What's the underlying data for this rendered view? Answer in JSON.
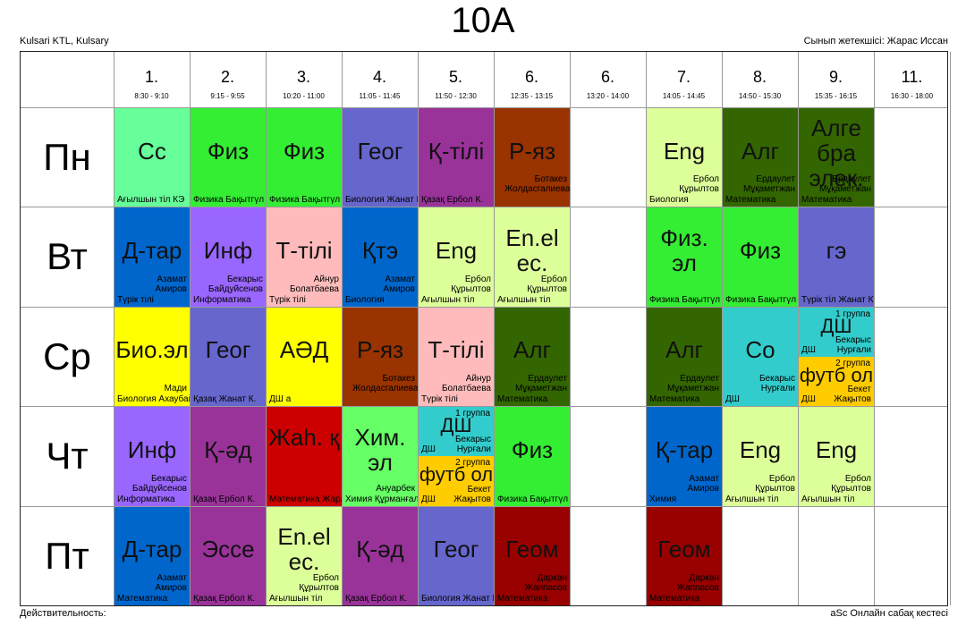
{
  "title": "10А",
  "school": "Kulsari KTL, Kulsary",
  "class_teacher": "Сынып жетекшісі: Жарас Иссан",
  "validity": "Действительность:",
  "footer": "aSc Онлайн сабақ кестесі",
  "periods": [
    {
      "num": "1.",
      "time": "8:30 - 9:10"
    },
    {
      "num": "2.",
      "time": "9:15 - 9:55"
    },
    {
      "num": "3.",
      "time": "10:20 - 11:00"
    },
    {
      "num": "4.",
      "time": "11:05 - 11:45"
    },
    {
      "num": "5.",
      "time": "11:50 - 12:30"
    },
    {
      "num": "6.",
      "time": "12:35 - 13:15"
    },
    {
      "num": "6.",
      "time": "13:20 - 14:00"
    },
    {
      "num": "7.",
      "time": "14:05 - 14:45"
    },
    {
      "num": "8.",
      "time": "14:50 - 15:30"
    },
    {
      "num": "9.",
      "time": "15:35 - 16:15"
    },
    {
      "num": "11.",
      "time": "16:30 - 18:00"
    }
  ],
  "days": [
    "Пн",
    "Вт",
    "Ср",
    "Чт",
    "Пт"
  ],
  "lessons": [
    {
      "day": 0,
      "col": 0,
      "subject": "Сс",
      "teacher": "",
      "room": "Ағылшын тіл КЭ",
      "color": "#66ff99"
    },
    {
      "day": 0,
      "col": 1,
      "subject": "Физ",
      "teacher": "",
      "room": "Физика Бақытгүл Н.",
      "color": "#33ee33"
    },
    {
      "day": 0,
      "col": 2,
      "subject": "Физ",
      "teacher": "",
      "room": "Физика Бақытгүл Н.",
      "color": "#33ee33"
    },
    {
      "day": 0,
      "col": 3,
      "subject": "Геог",
      "teacher": "",
      "room": "Биология Жанат К.",
      "color": "#6666cc"
    },
    {
      "day": 0,
      "col": 4,
      "subject": "Қ-тілі",
      "teacher": "",
      "room": "Қазақ Ербол К.",
      "color": "#993399"
    },
    {
      "day": 0,
      "col": 5,
      "subject": "Р-яз",
      "teacher": "Ботакез Жолдасгалиева",
      "room": "",
      "color": "#993300"
    },
    {
      "day": 0,
      "col": 7,
      "subject": "Eng",
      "teacher": "Ербол Құрылтов",
      "room": "Биология",
      "color": "#ddff99"
    },
    {
      "day": 0,
      "col": 8,
      "subject": "Алг",
      "teacher": "Ердаулет Мұқаметжан",
      "room": "Математика",
      "color": "#336600"
    },
    {
      "day": 0,
      "col": 9,
      "subject": "Алге бра элек.",
      "teacher": "Ердаулет Мұқаметжан",
      "room": "Математика",
      "color": "#336600"
    },
    {
      "day": 1,
      "col": 0,
      "subject": "Д-тар",
      "teacher": "Азамат Амиров",
      "room": "Түрік тілі",
      "color": "#0066cc"
    },
    {
      "day": 1,
      "col": 1,
      "subject": "Инф",
      "teacher": "Бекарыс Байдуйсенов",
      "room": "Информатика",
      "color": "#9966ff"
    },
    {
      "day": 1,
      "col": 2,
      "subject": "Т-тілі",
      "teacher": "Айнур Болатбаева",
      "room": "Түрік тілі",
      "color": "#ffbbbb"
    },
    {
      "day": 1,
      "col": 3,
      "subject": "Қтэ",
      "teacher": "Азамат Амиров",
      "room": "Биология",
      "color": "#0066cc"
    },
    {
      "day": 1,
      "col": 4,
      "subject": "Eng",
      "teacher": "Ербол Құрылтов",
      "room": "Ағылшын тіл",
      "color": "#ddff99"
    },
    {
      "day": 1,
      "col": 5,
      "subject": "En.el ес.",
      "teacher": "Ербол Құрылтов",
      "room": "Ағылшын тіл",
      "color": "#ddff99"
    },
    {
      "day": 1,
      "col": 7,
      "subject": "Физ. эл",
      "teacher": "",
      "room": "Физика Бақытгүл Н.",
      "color": "#33ee33"
    },
    {
      "day": 1,
      "col": 8,
      "subject": "Физ",
      "teacher": "",
      "room": "Физика Бақытгүл Н.",
      "color": "#33ee33"
    },
    {
      "day": 1,
      "col": 9,
      "subject": "гэ",
      "teacher": "",
      "room": "Түрік тіл Жанат К.",
      "color": "#6666cc"
    },
    {
      "day": 2,
      "col": 0,
      "subject": "Био.эл",
      "teacher": "Мади",
      "room": "Биология Ахаубай",
      "color": "#ffff00"
    },
    {
      "day": 2,
      "col": 1,
      "subject": "Геог",
      "teacher": "",
      "room": "Қазақ Жанат К.",
      "color": "#6666cc"
    },
    {
      "day": 2,
      "col": 2,
      "subject": "АӘД",
      "teacher": "",
      "room": "ДШ  а",
      "color": "#ffff00"
    },
    {
      "day": 2,
      "col": 3,
      "subject": "Р-яз",
      "teacher": "Ботакез Жолдасгалиева",
      "room": "",
      "color": "#993300"
    },
    {
      "day": 2,
      "col": 4,
      "subject": "Т-тілі",
      "teacher": "Айнур Болатбаева",
      "room": "Түрік тілі",
      "color": "#ffbbbb"
    },
    {
      "day": 2,
      "col": 5,
      "subject": "Алг",
      "teacher": "Ердаулет Мұқаметжан",
      "room": "Математика",
      "color": "#336600"
    },
    {
      "day": 2,
      "col": 7,
      "subject": "Алг",
      "teacher": "Ердаулет Мұқаметжан",
      "room": "Математика",
      "color": "#336600"
    },
    {
      "day": 2,
      "col": 8,
      "subject": "Со",
      "teacher": "Бекарыс Нурғали",
      "room": "ДШ",
      "color": "#33cccc"
    },
    {
      "day": 3,
      "col": 0,
      "subject": "Инф",
      "teacher": "Бекарыс Байдуйсенов",
      "room": "Информатика",
      "color": "#9966ff"
    },
    {
      "day": 3,
      "col": 1,
      "subject": "Қ-әд",
      "teacher": "",
      "room": "Қазақ Ербол К.",
      "color": "#993399"
    },
    {
      "day": 3,
      "col": 2,
      "subject": "Жаһ. қ",
      "teacher": "",
      "room": "Математика Жарас М.",
      "color": "#cc0000"
    },
    {
      "day": 3,
      "col": 3,
      "subject": "Хим. эл",
      "teacher": "Ануарбек",
      "room": "Химия Құрманғали",
      "color": "#66ff66"
    },
    {
      "day": 3,
      "col": 5,
      "subject": "Физ",
      "teacher": "",
      "room": "Физика Бақытгүл Н.",
      "color": "#33ee33"
    },
    {
      "day": 3,
      "col": 7,
      "subject": "Қ-тар",
      "teacher": "Азамат Амиров",
      "room": "Химия",
      "color": "#0066cc"
    },
    {
      "day": 3,
      "col": 8,
      "subject": "Eng",
      "teacher": "Ербол Құрылтов",
      "room": "Ағылшын тіл",
      "color": "#ddff99"
    },
    {
      "day": 3,
      "col": 9,
      "subject": "Eng",
      "teacher": "Ербол Құрылтов",
      "room": "Ағылшын тіл",
      "color": "#ddff99"
    },
    {
      "day": 4,
      "col": 0,
      "subject": "Д-тар",
      "teacher": "Азамат Амиров",
      "room": "Математика",
      "color": "#0066cc"
    },
    {
      "day": 4,
      "col": 1,
      "subject": "Эссе",
      "teacher": "",
      "room": "Қазақ Ербол К.",
      "color": "#993399"
    },
    {
      "day": 4,
      "col": 2,
      "subject": "En.el ес.",
      "teacher": "Ербол Құрылтов",
      "room": "Ағылшын тіл",
      "color": "#ddff99"
    },
    {
      "day": 4,
      "col": 3,
      "subject": "Қ-әд",
      "teacher": "",
      "room": "Қазақ Ербол К.",
      "color": "#993399"
    },
    {
      "day": 4,
      "col": 4,
      "subject": "Геог",
      "teacher": "",
      "room": "Биология Жанат К.",
      "color": "#6666cc"
    },
    {
      "day": 4,
      "col": 5,
      "subject": "Геом",
      "teacher": "Даркан Жаппасов",
      "room": "Математика",
      "color": "#990000"
    },
    {
      "day": 4,
      "col": 7,
      "subject": "Геом",
      "teacher": "Даркан Жаппасов",
      "room": "Математика",
      "color": "#990000"
    }
  ],
  "split_lessons": [
    {
      "day": 2,
      "col": 9,
      "top": {
        "subject": "ДШ",
        "group": "1 группа",
        "teacher": "Бекарыс Нурғали",
        "room": "ДШ",
        "color": "#33cccc"
      },
      "bottom": {
        "subject": "футб ол",
        "group": "2 группа",
        "teacher": "Бекет Жақытов",
        "room": "ДШ",
        "color": "#ffcc00"
      }
    },
    {
      "day": 3,
      "col": 4,
      "top": {
        "subject": "ДШ",
        "group": "1 группа",
        "teacher": "Бекарыс Нурғали",
        "room": "ДШ",
        "color": "#33cccc"
      },
      "bottom": {
        "subject": "футб ол",
        "group": "2 группа",
        "teacher": "Бекет Жақытов",
        "room": "ДШ",
        "color": "#ffcc00"
      }
    }
  ]
}
